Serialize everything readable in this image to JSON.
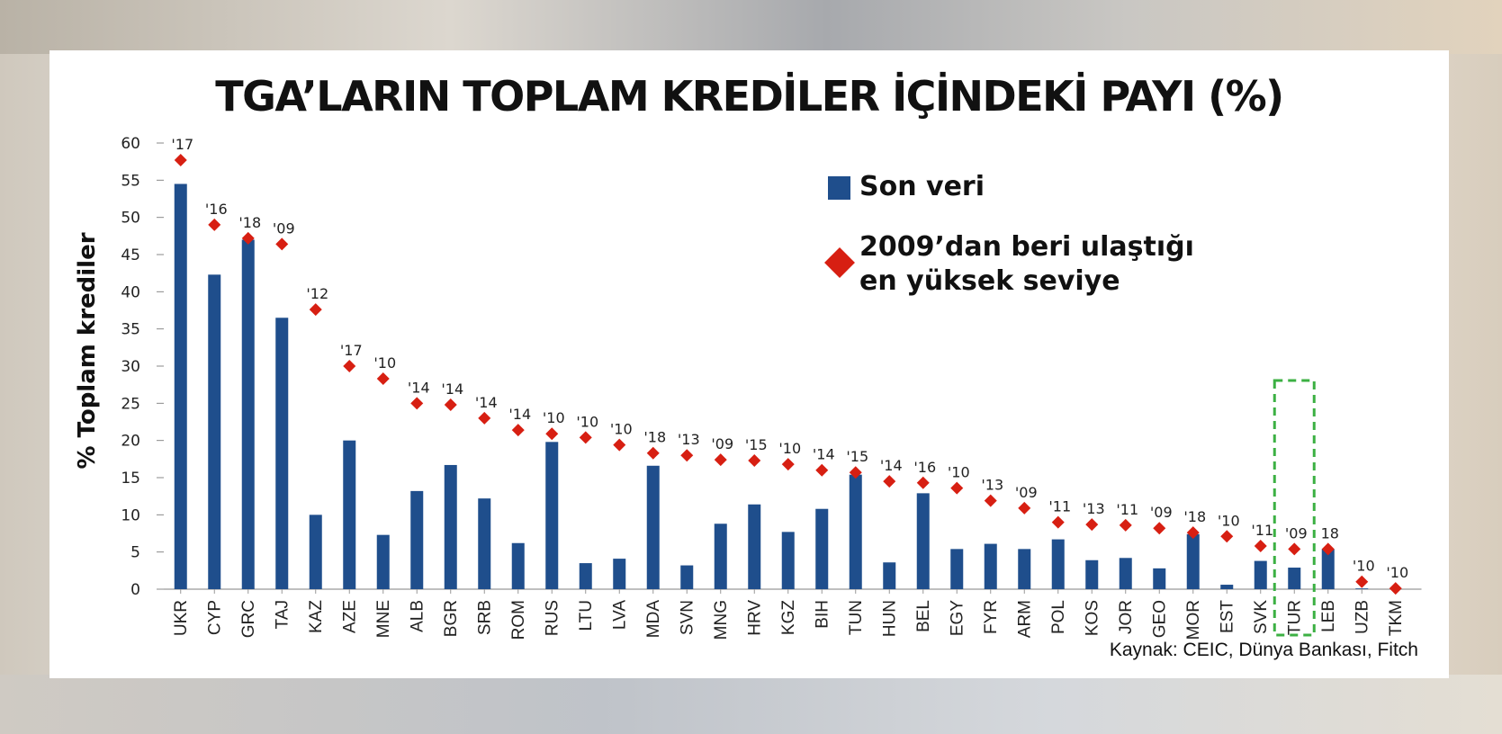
{
  "chart_data": {
    "type": "bar",
    "title": "TGA’LARIN TOPLAM KREDİLER İÇİNDEKİ PAYI (%)",
    "ylabel": "% Toplam krediler",
    "xlabel": "",
    "ylim": [
      0,
      60
    ],
    "yticks": [
      "0",
      "5",
      "10",
      "15",
      "20",
      "25",
      "30",
      "35",
      "40",
      "45",
      "50",
      "55",
      "60"
    ],
    "categories": [
      "UKR",
      "CYP",
      "GRC",
      "TAJ",
      "KAZ",
      "AZE",
      "MNE",
      "ALB",
      "BGR",
      "SRB",
      "ROM",
      "RUS",
      "LTU",
      "LVA",
      "MDA",
      "SVN",
      "MNG",
      "HRV",
      "KGZ",
      "BIH",
      "TUN",
      "HUN",
      "BEL",
      "EGY",
      "FYR",
      "ARM",
      "POL",
      "KOS",
      "JOR",
      "GEO",
      "MOR",
      "EST",
      "SVK",
      "TUR",
      "LEB",
      "UZB",
      "TKM"
    ],
    "series": [
      {
        "name": "Son veri",
        "kind": "bar",
        "color": "#1f4e8c",
        "values": [
          54.5,
          42.3,
          47.0,
          36.5,
          10.0,
          20.0,
          7.3,
          13.2,
          16.7,
          12.2,
          6.2,
          19.8,
          3.5,
          4.1,
          16.6,
          3.2,
          8.8,
          11.4,
          7.7,
          10.8,
          15.4,
          3.6,
          12.9,
          5.4,
          6.1,
          5.4,
          6.7,
          3.9,
          4.2,
          2.8,
          7.4,
          0.6,
          3.8,
          2.9,
          5.4,
          0.1,
          0.0
        ]
      },
      {
        "name": "2009’dan beri ulaştığı\nen yüksek seviye",
        "kind": "diamond",
        "color": "#d71f12",
        "values": [
          57.7,
          49.0,
          47.2,
          46.4,
          37.6,
          30.0,
          28.3,
          25.0,
          24.8,
          23.0,
          21.4,
          20.9,
          20.4,
          19.4,
          18.3,
          18.0,
          17.4,
          17.3,
          16.8,
          16.0,
          15.7,
          14.5,
          14.3,
          13.6,
          11.9,
          10.9,
          9.0,
          8.7,
          8.6,
          8.2,
          7.6,
          7.1,
          5.8,
          5.4,
          5.4,
          1.0,
          0.1
        ]
      }
    ],
    "year_labels": [
      "'17",
      "'16",
      "'18",
      "'09",
      "'12",
      "'17",
      "'10",
      "'14",
      "'14",
      "'14",
      "'14",
      "'10",
      "'10",
      "'10",
      "'18",
      "'13",
      "'09",
      "'15",
      "'10",
      "'14",
      "'15",
      "'14",
      "'16",
      "'10",
      "'13",
      "'09",
      "'11",
      "'13",
      "'11",
      "'09",
      "'18",
      "'10",
      "'11",
      "'09",
      "18",
      "'10",
      "'10"
    ],
    "highlight_category": "TUR",
    "highlight_color": "#3cb043",
    "grid": false,
    "legend_position": "top-right",
    "source": "Kaynak: CEIC, Dünya Bankası, Fitch"
  }
}
